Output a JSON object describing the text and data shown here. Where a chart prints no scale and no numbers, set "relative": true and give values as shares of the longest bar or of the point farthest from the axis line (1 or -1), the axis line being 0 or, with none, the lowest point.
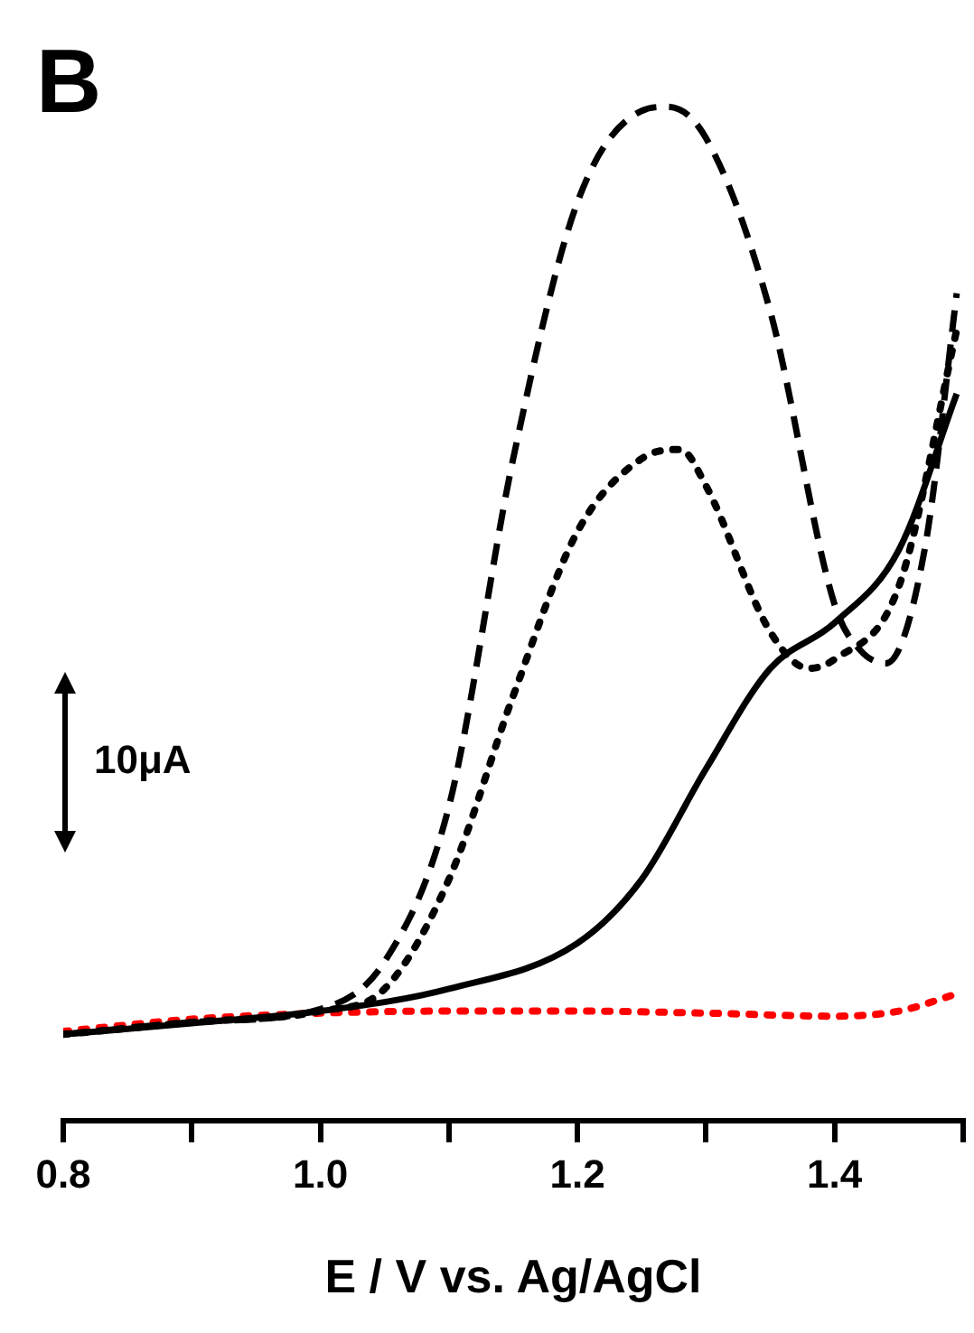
{
  "chart_data": {
    "type": "line",
    "title": "B",
    "xlabel": "E / V vs. Ag/AgCl",
    "relative": true,
    "xlim": [
      0.8,
      1.5
    ],
    "xticks": [
      0.8,
      {
        "value": 0.9,
        "label": null
      },
      {
        "value": 1.0,
        "label": "1.0"
      },
      {
        "value": 1.1,
        "label": null
      },
      {
        "value": 1.2,
        "label": "1.2"
      },
      {
        "value": 1.3,
        "label": null
      },
      {
        "value": 1.4,
        "label": "1.4"
      },
      {
        "value": 1.5,
        "label": null
      }
    ],
    "annotations": [
      "10μA"
    ],
    "grid": false,
    "legend": false,
    "marker": "none",
    "series": [
      {
        "color": "#000000",
        "line_style": "dashed",
        "x": [
          0.8,
          0.9,
          1.0,
          1.05,
          1.1,
          1.15,
          1.2,
          1.25,
          1.27,
          1.3,
          1.35,
          1.4,
          1.42,
          1.44,
          1.47,
          1.495
        ],
        "values": [
          0.085,
          0.097,
          0.11,
          0.157,
          0.31,
          0.653,
          0.906,
          0.996,
          1,
          0.969,
          0.798,
          0.509,
          0.464,
          0.451,
          0.563,
          0.816
        ]
      },
      {
        "color": "#000000",
        "line_style": "dotted",
        "x": [
          0.8,
          0.9,
          1.0,
          1.05,
          1.1,
          1.15,
          1.2,
          1.25,
          1.28,
          1.3,
          1.35,
          1.38,
          1.4,
          1.45,
          1.495
        ],
        "values": [
          0.085,
          0.097,
          0.108,
          0.13,
          0.238,
          0.419,
          0.581,
          0.653,
          0.662,
          0.626,
          0.482,
          0.446,
          0.455,
          0.527,
          0.78
        ]
      },
      {
        "color": "#000000",
        "line_style": "solid",
        "x": [
          0.8,
          0.9,
          1.0,
          1.1,
          1.2,
          1.25,
          1.3,
          1.35,
          1.4,
          1.45,
          1.495
        ],
        "values": [
          0.085,
          0.096,
          0.108,
          0.13,
          0.175,
          0.238,
          0.347,
          0.446,
          0.491,
          0.563,
          0.717
        ]
      },
      {
        "color": "#ff0000",
        "line_style": "dotted",
        "x": [
          0.8,
          0.9,
          1.0,
          1.1,
          1.2,
          1.3,
          1.4,
          1.45,
          1.495
        ],
        "values": [
          0.088,
          0.1,
          0.106,
          0.108,
          0.108,
          0.106,
          0.103,
          0.108,
          0.125
        ]
      }
    ]
  }
}
